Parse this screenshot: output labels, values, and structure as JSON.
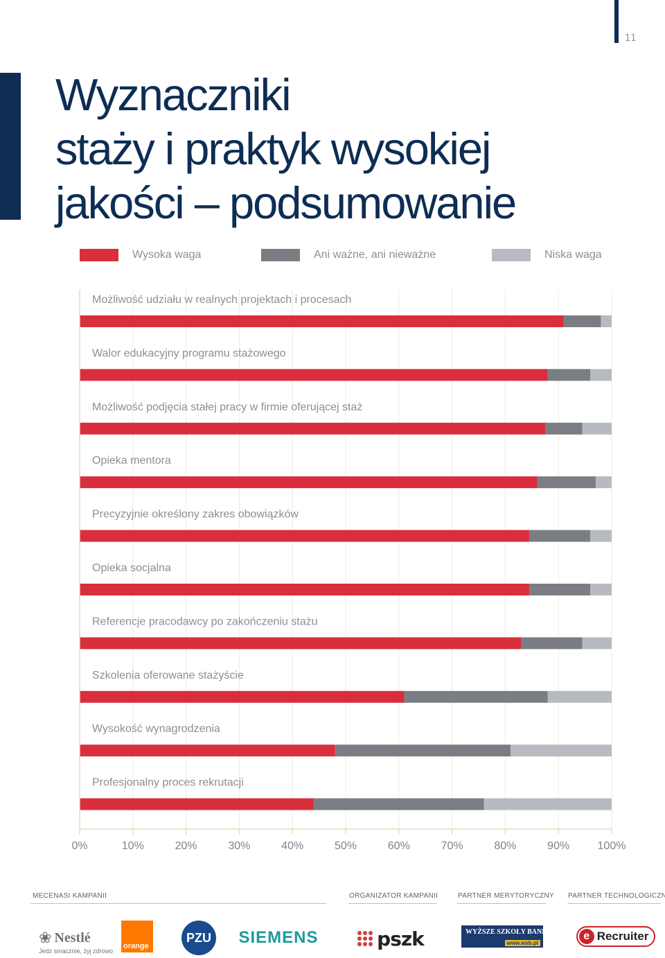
{
  "page_number": "11",
  "title_lines": [
    "Wyznaczniki",
    "staży i praktyk wysokiej",
    "jakości – podsumowanie"
  ],
  "colors": {
    "navy": "#0d2d54",
    "high": "#d92e3b",
    "neutral": "#7a7e83",
    "low": "#b7bbbf"
  },
  "legend": [
    {
      "label": "Wysoka waga",
      "color": "#d92e3b"
    },
    {
      "label": "Ani ważne, ani nieważne",
      "color": "#7a7e83"
    },
    {
      "label": "Niska waga",
      "color": "#b7bbbf"
    }
  ],
  "chart_data": {
    "type": "bar",
    "orientation": "horizontal",
    "stacked": true,
    "categories": [
      "Możliwość udziału w realnych projektach i procesach",
      "Walor edukacyjny programu stażowego",
      "Możliwość podjęcia stałej pracy w firmie oferującej staż",
      "Opieka mentora",
      "Precyzyjnie określony zakres obowiązków",
      "Opieka socjalna",
      "Referencje pracodawcy po zakończeniu stażu",
      "Szkolenia oferowane stażyście",
      "Wysokość wynagrodzenia",
      "Profesjonalny proces rekrutacji"
    ],
    "series": [
      {
        "name": "Wysoka waga",
        "values": [
          91,
          88,
          87.5,
          86,
          84.5,
          84.5,
          83,
          61,
          48,
          44
        ]
      },
      {
        "name": "Ani ważne, ani nieważne",
        "values": [
          7,
          8,
          7,
          11,
          11.5,
          11.5,
          11.5,
          27,
          33,
          32
        ]
      },
      {
        "name": "Niska waga",
        "values": [
          2,
          4,
          5.5,
          3,
          4,
          4,
          5.5,
          12,
          19,
          24
        ]
      }
    ],
    "x_ticks": [
      "0%",
      "10%",
      "20%",
      "30%",
      "40%",
      "50%",
      "60%",
      "70%",
      "80%",
      "90%",
      "100%"
    ],
    "xlim": [
      0,
      100
    ],
    "grid": true,
    "legend_position": "top"
  },
  "footer": {
    "labels": [
      "MECENASI KAMPANII",
      "ORGANIZATOR KAMPANII",
      "PARTNER MERYTORYCZNY",
      "PARTNER TECHNOLOGICZNY"
    ],
    "logos": {
      "nestle": "Nestlé",
      "nestle_tagline": "Jedz smacznie, żyj zdrowo",
      "orange": "orange",
      "pzu": "PZU",
      "siemens": "SIEMENS",
      "pszk": "pszk",
      "wsb": "WYŻSZE SZKOŁY BANKOWE",
      "wsb_url": "www.wsb.pl",
      "erecruiter": "Recruiter"
    }
  }
}
